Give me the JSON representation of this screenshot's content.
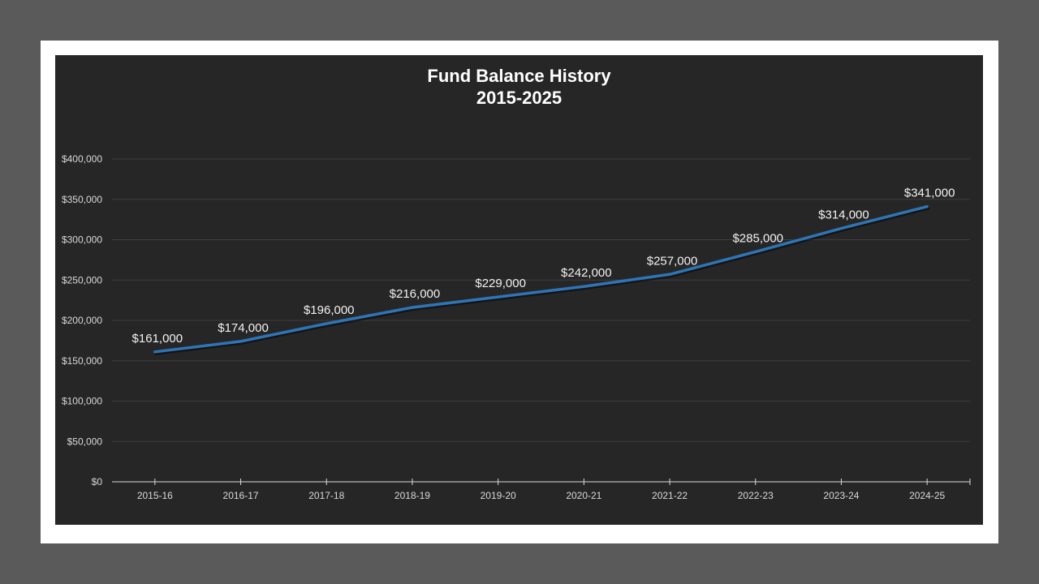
{
  "chart_data": {
    "type": "line",
    "title": "Fund Balance History",
    "subtitle": "2015-2025",
    "xlabel": "",
    "ylabel": "",
    "categories": [
      "2015-16",
      "2016-17",
      "2017-18",
      "2018-19",
      "2019-20",
      "2020-21",
      "2021-22",
      "2022-23",
      "2023-24",
      "2024-25"
    ],
    "series": [
      {
        "name": "Fund Balance",
        "values": [
          161000,
          174000,
          196000,
          216000,
          229000,
          242000,
          257000,
          285000,
          314000,
          341000
        ],
        "data_labels": [
          "$161,000",
          "$174,000",
          "$196,000",
          "$216,000",
          "$229,000",
          "$242,000",
          "$257,000",
          "$285,000",
          "$314,000",
          "$341,000"
        ],
        "color": "#2e75b6"
      }
    ],
    "ylim": [
      0,
      400000
    ],
    "yticks": [
      0,
      50000,
      100000,
      150000,
      200000,
      250000,
      300000,
      350000,
      400000
    ],
    "ytick_labels": [
      "$0",
      "$50,000",
      "$100,000",
      "$150,000",
      "$200,000",
      "$250,000",
      "$300,000",
      "$350,000",
      "$400,000"
    ],
    "grid": true,
    "legend": "none"
  },
  "colors": {
    "page_background": "#5a5a5a",
    "frame": "#ffffff",
    "chart_background": "#262626",
    "gridline": "#3d3d3d",
    "axis": "#d9d9d9",
    "text": "#ffffff",
    "line": "#2e75b6"
  }
}
